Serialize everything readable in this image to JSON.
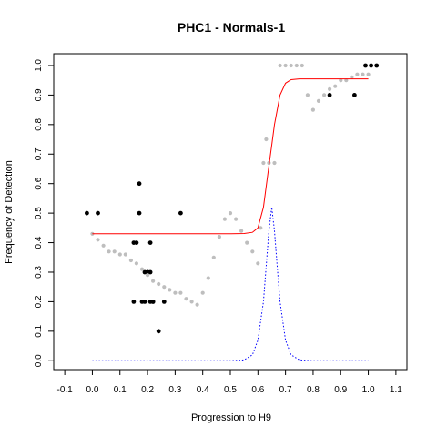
{
  "chart_data": {
    "type": "scatter",
    "title": "PHC1 - Normals-1",
    "xlabel": "Progression to H9",
    "ylabel": "Frequency of Detection",
    "xlim": [
      -0.14,
      1.14
    ],
    "ylim": [
      -0.03,
      1.04
    ],
    "x_ticks": [
      "-0.1",
      "0.0",
      "0.1",
      "0.2",
      "0.3",
      "0.4",
      "0.5",
      "0.6",
      "0.7",
      "0.8",
      "0.9",
      "1.0",
      "1.1"
    ],
    "y_ticks": [
      "0.0",
      "0.1",
      "0.2",
      "0.3",
      "0.4",
      "0.5",
      "0.6",
      "0.7",
      "0.8",
      "0.9",
      "1.0"
    ],
    "grid": false,
    "colors": {
      "observed": "#000000",
      "smoothed": "#bebebe",
      "sigmoid_fit": "#ff0000",
      "density": "#0000ff"
    },
    "series": [
      {
        "style": "points",
        "color": "#000000",
        "x": [
          -0.02,
          0.02,
          0.15,
          0.16,
          0.15,
          0.17,
          0.17,
          0.18,
          0.19,
          0.19,
          0.2,
          0.21,
          0.21,
          0.22,
          0.2,
          0.21,
          0.22,
          0.24,
          0.26,
          0.32,
          0.86,
          0.95,
          0.99,
          1.01,
          1.03
        ],
        "y": [
          0.5,
          0.5,
          0.4,
          0.4,
          0.2,
          0.6,
          0.5,
          0.2,
          0.3,
          0.2,
          0.3,
          0.4,
          0.2,
          0.2,
          0.3,
          0.3,
          0.2,
          0.1,
          0.2,
          0.5,
          0.9,
          0.9,
          1.0,
          1.0,
          1.0
        ]
      },
      {
        "style": "smoothed-points",
        "color": "#bebebe",
        "x": [
          0.0,
          0.02,
          0.04,
          0.06,
          0.08,
          0.1,
          0.12,
          0.14,
          0.16,
          0.18,
          0.2,
          0.22,
          0.24,
          0.26,
          0.28,
          0.3,
          0.32,
          0.34,
          0.36,
          0.38,
          0.4,
          0.42,
          0.44,
          0.46,
          0.48,
          0.5,
          0.52,
          0.54,
          0.56,
          0.58,
          0.6,
          0.61,
          0.62,
          0.63,
          0.64,
          0.66,
          0.68,
          0.7,
          0.72,
          0.74,
          0.76,
          0.78,
          0.8,
          0.82,
          0.84,
          0.86,
          0.88,
          0.9,
          0.92,
          0.94,
          0.96,
          0.98,
          1.0
        ],
        "y": [
          0.43,
          0.41,
          0.39,
          0.37,
          0.37,
          0.36,
          0.36,
          0.34,
          0.33,
          0.31,
          0.29,
          0.27,
          0.26,
          0.25,
          0.24,
          0.23,
          0.23,
          0.21,
          0.2,
          0.19,
          0.23,
          0.28,
          0.35,
          0.42,
          0.48,
          0.5,
          0.48,
          0.44,
          0.4,
          0.37,
          0.33,
          0.45,
          0.67,
          0.75,
          0.67,
          0.67,
          1.0,
          1.0,
          1.0,
          1.0,
          1.0,
          0.9,
          0.85,
          0.88,
          0.9,
          0.92,
          0.93,
          0.95,
          0.95,
          0.96,
          0.97,
          0.97,
          0.97
        ]
      },
      {
        "style": "line",
        "color": "#ff0000",
        "x": [
          0.0,
          0.1,
          0.2,
          0.3,
          0.4,
          0.5,
          0.55,
          0.58,
          0.6,
          0.62,
          0.64,
          0.65,
          0.66,
          0.68,
          0.7,
          0.72,
          0.75,
          0.8,
          0.9,
          1.0
        ],
        "y": [
          0.43,
          0.43,
          0.43,
          0.43,
          0.43,
          0.43,
          0.431,
          0.435,
          0.45,
          0.52,
          0.66,
          0.73,
          0.8,
          0.9,
          0.94,
          0.952,
          0.955,
          0.955,
          0.955,
          0.955
        ]
      },
      {
        "style": "dotted-line",
        "color": "#0000ff",
        "x": [
          0.0,
          0.5,
          0.55,
          0.58,
          0.6,
          0.62,
          0.63,
          0.64,
          0.65,
          0.66,
          0.67,
          0.68,
          0.7,
          0.72,
          0.75,
          0.8,
          1.0
        ],
        "y": [
          0.0,
          0.0,
          0.003,
          0.02,
          0.07,
          0.2,
          0.32,
          0.44,
          0.52,
          0.44,
          0.32,
          0.2,
          0.07,
          0.02,
          0.003,
          0.0,
          0.0
        ]
      }
    ]
  }
}
